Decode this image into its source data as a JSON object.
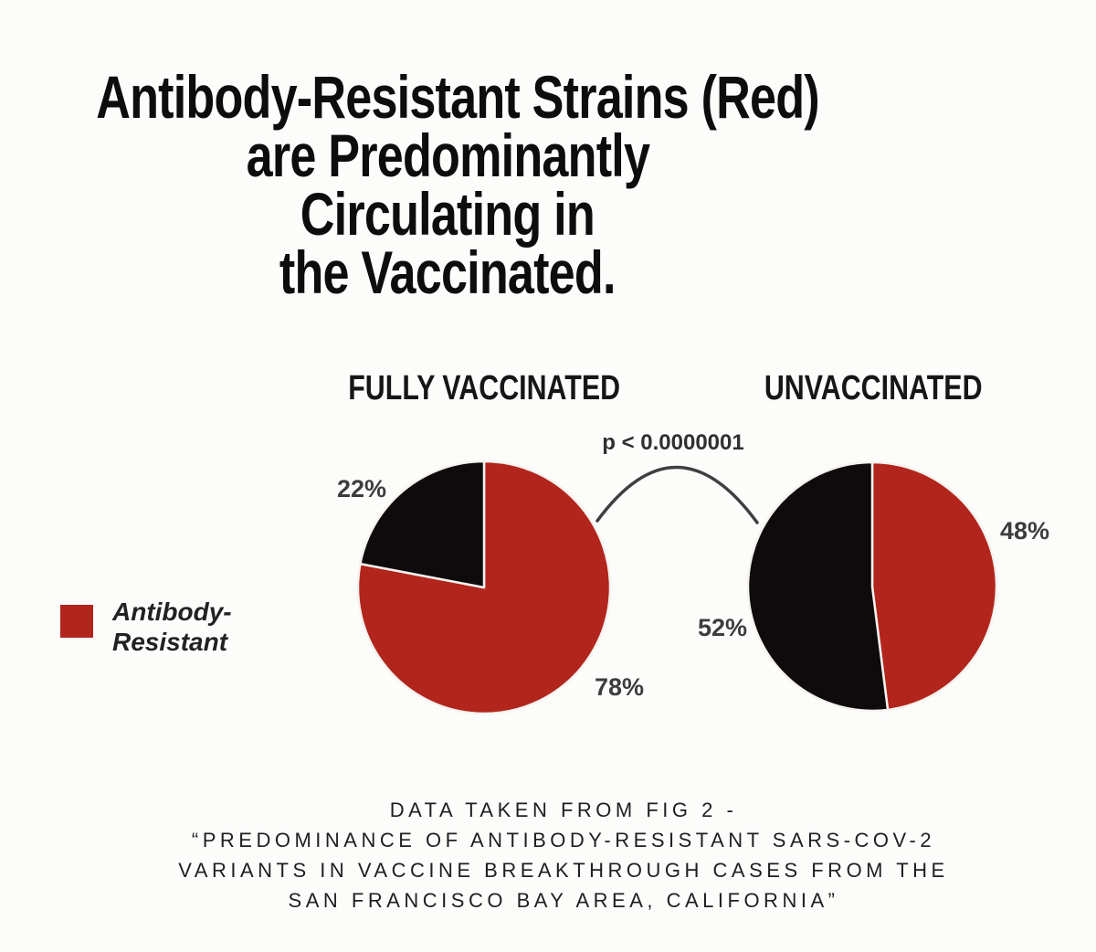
{
  "title": {
    "lines": [
      "Antibody-Resistant Strains (Red)",
      "are Predominantly",
      "Circulating in",
      "the Vaccinated."
    ]
  },
  "legend": {
    "swatch_color": "#b2251d",
    "lines": [
      "Antibody-",
      "Resistant"
    ]
  },
  "annotation": {
    "p_value": "p < 0.0000001"
  },
  "chart_data": [
    {
      "type": "pie",
      "title": "FULLY VACCINATED",
      "start_angle": "12 o'clock",
      "direction": "clockwise",
      "slices": [
        {
          "label": "Antibody-Resistant",
          "value": 78,
          "pct": "78%",
          "color": "#b2251d"
        },
        {
          "value": 22,
          "pct": "22%",
          "color": "#0e0b0c"
        }
      ]
    },
    {
      "type": "pie",
      "title": "UNVACCINATED",
      "start_angle": "12 o'clock",
      "direction": "clockwise",
      "slices": [
        {
          "label": "Antibody-Resistant",
          "value": 48,
          "pct": "48%",
          "color": "#b2251d"
        },
        {
          "value": 52,
          "pct": "52%",
          "color": "#0e0b0c"
        }
      ]
    }
  ],
  "footer": {
    "lines": [
      "DATA TAKEN FROM FIG 2 -",
      "“PREDOMINANCE OF ANTIBODY-RESISTANT SARS-COV-2",
      "VARIANTS IN VACCINE BREAKTHROUGH CASES FROM THE",
      "SAN FRANCISCO BAY AREA, CALIFORNIA”"
    ]
  }
}
